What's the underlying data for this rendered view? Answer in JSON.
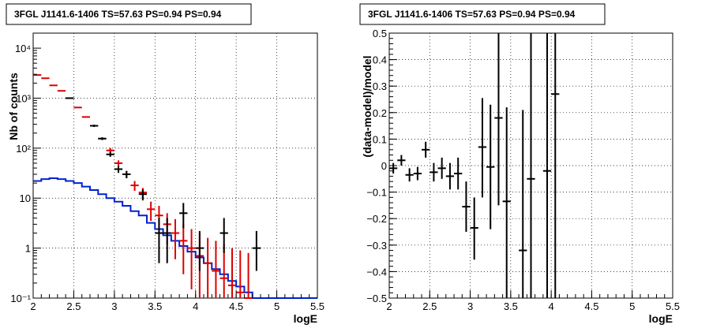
{
  "panels": [
    {
      "id": "left",
      "title": "3FGL J1141.6-1406 TS=57.63 PS=0.94 PS=0.94",
      "xlabel": "logE",
      "ylabel": "Nb of counts",
      "xlim": [
        2,
        5.5
      ],
      "ylim": [
        0.1,
        20000
      ],
      "yscale": "log",
      "xticks": [
        {
          "v": 2,
          "label": "2"
        },
        {
          "v": 2.5,
          "label": "2.5"
        },
        {
          "v": 3,
          "label": "3"
        },
        {
          "v": 3.5,
          "label": "3.5"
        },
        {
          "v": 4,
          "label": "4"
        },
        {
          "v": 4.5,
          "label": "4.5"
        },
        {
          "v": 5,
          "label": "5"
        },
        {
          "v": 5.5,
          "label": "5.5"
        }
      ],
      "yticks": [
        {
          "v": 0.1,
          "label": "10⁻¹"
        },
        {
          "v": 1,
          "label": "1"
        },
        {
          "v": 10,
          "label": "10"
        },
        {
          "v": 100,
          "label": "10²"
        },
        {
          "v": 1000,
          "label": "10³"
        },
        {
          "v": 10000,
          "label": "10⁴"
        }
      ]
    },
    {
      "id": "right",
      "title": "3FGL J1141.6-1406 TS=57.63 PS=0.94 PS=0.94",
      "xlabel": "logE",
      "ylabel": "(data-model)/model",
      "xlim": [
        2,
        5.5
      ],
      "ylim": [
        -0.5,
        0.5
      ],
      "yscale": "linear",
      "xticks": [
        {
          "v": 2,
          "label": "2"
        },
        {
          "v": 2.5,
          "label": "2.5"
        },
        {
          "v": 3,
          "label": "3"
        },
        {
          "v": 3.5,
          "label": "3.5"
        },
        {
          "v": 4,
          "label": "4"
        },
        {
          "v": 4.5,
          "label": "4.5"
        },
        {
          "v": 5,
          "label": "5"
        },
        {
          "v": 5.5,
          "label": "5.5"
        }
      ],
      "yticks": [
        {
          "v": -0.5,
          "label": "−0.5"
        },
        {
          "v": -0.4,
          "label": "−0.4"
        },
        {
          "v": -0.3,
          "label": "−0.3"
        },
        {
          "v": -0.2,
          "label": "−0.2"
        },
        {
          "v": -0.1,
          "label": "−0.1"
        },
        {
          "v": 0,
          "label": "0"
        },
        {
          "v": 0.1,
          "label": "0.1"
        },
        {
          "v": 0.2,
          "label": "0.2"
        },
        {
          "v": 0.3,
          "label": "0.3"
        },
        {
          "v": 0.4,
          "label": "0.4"
        },
        {
          "v": 0.5,
          "label": "0.5"
        }
      ]
    }
  ],
  "chart_data": [
    {
      "type": "scatter",
      "title": "3FGL J1141.6-1406 TS=57.63 PS=0.94 PS=0.94",
      "xlabel": "logE",
      "ylabel": "Nb of counts",
      "xlim": [
        2,
        5.5
      ],
      "ylim": [
        0.1,
        20000
      ],
      "yscale": "log",
      "grid": true,
      "colors": {
        "data": "#000000",
        "model": "#dd0000",
        "source": "#0022cc"
      },
      "bin_half_width": 0.05,
      "data_points": [
        {
          "x": 2.45,
          "y": 1000,
          "lo": 980,
          "hi": 1020
        },
        {
          "x": 2.75,
          "y": 280,
          "lo": 265,
          "hi": 295
        },
        {
          "x": 2.85,
          "y": 155,
          "lo": 145,
          "hi": 165
        },
        {
          "x": 2.95,
          "y": 75,
          "lo": 67,
          "hi": 84
        },
        {
          "x": 3.05,
          "y": 38,
          "lo": 32,
          "hi": 44
        },
        {
          "x": 3.15,
          "y": 30,
          "lo": 25,
          "hi": 35
        },
        {
          "x": 3.35,
          "y": 12,
          "lo": 9,
          "hi": 15
        },
        {
          "x": 3.55,
          "y": 2,
          "lo": 0.5,
          "hi": 4
        },
        {
          "x": 3.65,
          "y": 2,
          "lo": 0.5,
          "hi": 4
        },
        {
          "x": 3.85,
          "y": 5,
          "lo": 2.5,
          "hi": 8
        },
        {
          "x": 4.05,
          "y": 1,
          "lo": 0.35,
          "hi": 2.2
        },
        {
          "x": 4.35,
          "y": 2,
          "lo": 0.8,
          "hi": 4
        },
        {
          "x": 4.75,
          "y": 1,
          "lo": 0.35,
          "hi": 2.2
        }
      ],
      "model_points": [
        {
          "x": 2.05,
          "y": 2900,
          "lo": 2900,
          "hi": 2900
        },
        {
          "x": 2.15,
          "y": 2500,
          "lo": 2500,
          "hi": 2500
        },
        {
          "x": 2.25,
          "y": 1800,
          "lo": 1800,
          "hi": 1800
        },
        {
          "x": 2.35,
          "y": 1400,
          "lo": 1400,
          "hi": 1400
        },
        {
          "x": 2.45,
          "y": 1000,
          "lo": 1000,
          "hi": 1000
        },
        {
          "x": 2.55,
          "y": 650,
          "lo": 650,
          "hi": 650
        },
        {
          "x": 2.65,
          "y": 420,
          "lo": 420,
          "hi": 420
        },
        {
          "x": 2.75,
          "y": 280,
          "lo": 280,
          "hi": 280
        },
        {
          "x": 2.85,
          "y": 155,
          "lo": 155,
          "hi": 155
        },
        {
          "x": 2.95,
          "y": 90,
          "lo": 80,
          "hi": 101
        },
        {
          "x": 3.05,
          "y": 50,
          "lo": 43,
          "hi": 57
        },
        {
          "x": 3.15,
          "y": 30,
          "lo": 25,
          "hi": 35
        },
        {
          "x": 3.25,
          "y": 18,
          "lo": 14,
          "hi": 22
        },
        {
          "x": 3.35,
          "y": 13,
          "lo": 10,
          "hi": 16
        },
        {
          "x": 3.45,
          "y": 6,
          "lo": 3.5,
          "hi": 8.5
        },
        {
          "x": 3.55,
          "y": 4.5,
          "lo": 2.2,
          "hi": 7
        },
        {
          "x": 3.65,
          "y": 3,
          "lo": 1.2,
          "hi": 5
        },
        {
          "x": 3.75,
          "y": 2,
          "lo": 0.6,
          "hi": 3.8
        },
        {
          "x": 3.85,
          "y": 1.4,
          "lo": 0.3,
          "hi": 3
        },
        {
          "x": 3.95,
          "y": 1,
          "lo": 0.15,
          "hi": 2.4
        },
        {
          "x": 4.05,
          "y": 0.7,
          "lo": 0.1,
          "hi": 2
        },
        {
          "x": 4.15,
          "y": 0.5,
          "lo": 0.1,
          "hi": 1.6
        },
        {
          "x": 4.25,
          "y": 0.35,
          "lo": 0.1,
          "hi": 1.4
        },
        {
          "x": 4.35,
          "y": 0.25,
          "lo": 0.1,
          "hi": 1.2
        },
        {
          "x": 4.45,
          "y": 0.18,
          "lo": 0.1,
          "hi": 1
        },
        {
          "x": 4.55,
          "y": 0.13,
          "lo": 0.1,
          "hi": 0.9
        },
        {
          "x": 4.65,
          "y": 0.1,
          "lo": 0.1,
          "hi": 0.8
        }
      ],
      "source_histogram": {
        "edges": [
          2.0,
          2.1,
          2.2,
          2.3,
          2.4,
          2.5,
          2.6,
          2.7,
          2.8,
          2.9,
          3.0,
          3.1,
          3.2,
          3.3,
          3.4,
          3.5,
          3.6,
          3.7,
          3.8,
          3.9,
          4.0,
          4.1,
          4.2,
          4.3,
          4.4,
          4.5,
          4.6,
          4.7,
          4.8,
          4.9,
          5.0,
          5.1,
          5.2,
          5.3,
          5.4,
          5.5
        ],
        "values": [
          22,
          24,
          25,
          24,
          22,
          20,
          17,
          14.5,
          12,
          10,
          8.5,
          7,
          5.5,
          4.5,
          3.2,
          2.4,
          1.8,
          1.4,
          1.1,
          0.85,
          0.65,
          0.5,
          0.38,
          0.3,
          0.22,
          0.17,
          0.13,
          0.1,
          0.1,
          0.1,
          0.1,
          0.1,
          0.1,
          0.1,
          0.1
        ]
      }
    },
    {
      "type": "scatter",
      "title": "3FGL J1141.6-1406 TS=57.63 PS=0.94 PS=0.94",
      "xlabel": "logE",
      "ylabel": "(data-model)/model",
      "xlim": [
        2,
        5.5
      ],
      "ylim": [
        -0.5,
        0.5
      ],
      "grid": true,
      "colors": {
        "data": "#000000"
      },
      "bin_half_width": 0.05,
      "points": [
        {
          "x": 2.05,
          "y": -0.01,
          "lo": -0.03,
          "hi": 0.01
        },
        {
          "x": 2.15,
          "y": 0.02,
          "lo": 0.0,
          "hi": 0.04
        },
        {
          "x": 2.25,
          "y": -0.035,
          "lo": -0.06,
          "hi": -0.01
        },
        {
          "x": 2.35,
          "y": -0.03,
          "lo": -0.055,
          "hi": -0.005
        },
        {
          "x": 2.45,
          "y": 0.06,
          "lo": 0.03,
          "hi": 0.09
        },
        {
          "x": 2.55,
          "y": -0.025,
          "lo": -0.06,
          "hi": 0.01
        },
        {
          "x": 2.65,
          "y": -0.01,
          "lo": -0.05,
          "hi": 0.03
        },
        {
          "x": 2.75,
          "y": -0.04,
          "lo": -0.09,
          "hi": 0.01
        },
        {
          "x": 2.85,
          "y": -0.03,
          "lo": -0.09,
          "hi": 0.03
        },
        {
          "x": 2.95,
          "y": -0.155,
          "lo": -0.25,
          "hi": -0.06
        },
        {
          "x": 3.05,
          "y": -0.235,
          "lo": -0.355,
          "hi": -0.12
        },
        {
          "x": 3.15,
          "y": 0.07,
          "lo": -0.12,
          "hi": 0.255
        },
        {
          "x": 3.25,
          "y": -0.005,
          "lo": -0.24,
          "hi": 0.23
        },
        {
          "x": 3.35,
          "y": 0.18,
          "lo": -0.15,
          "hi": 0.5
        },
        {
          "x": 3.45,
          "y": -0.135,
          "lo": -0.5,
          "hi": 0.22
        },
        {
          "x": 3.65,
          "y": -0.32,
          "lo": -0.5,
          "hi": 0.21
        },
        {
          "x": 3.75,
          "y": -0.05,
          "lo": -0.5,
          "hi": 0.5
        },
        {
          "x": 3.95,
          "y": -0.02,
          "lo": -0.5,
          "hi": 0.5
        },
        {
          "x": 4.05,
          "y": 0.27,
          "lo": -0.5,
          "hi": 0.5
        }
      ]
    }
  ]
}
